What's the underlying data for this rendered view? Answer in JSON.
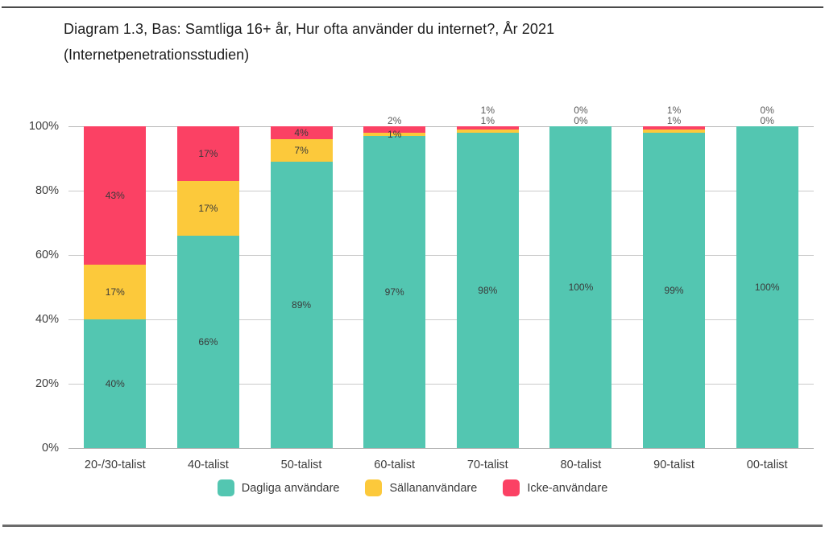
{
  "chart_data": {
    "type": "bar",
    "stacked": true,
    "title": "Diagram 1.3, Bas: Samtliga 16+ år, Hur ofta använder du internet?, År 2021",
    "subtitle": "(Internetpenetrationsstudien)",
    "categories": [
      "20-/30-talist",
      "40-talist",
      "50-talist",
      "60-talist",
      "70-talist",
      "80-talist",
      "90-talist",
      "00-talist"
    ],
    "series": [
      {
        "name": "Dagliga användare",
        "color": "#53C6B1",
        "values": [
          40,
          66,
          89,
          97,
          98,
          100,
          99,
          100
        ]
      },
      {
        "name": "Sällananvändare",
        "color": "#FCC93B",
        "values": [
          17,
          17,
          7,
          1,
          1,
          0,
          1,
          0
        ]
      },
      {
        "name": "Icke-användare",
        "color": "#FB4164",
        "values": [
          43,
          17,
          4,
          2,
          1,
          0,
          1,
          0
        ]
      }
    ],
    "value_label_suffix": "%",
    "yticks": [
      "0%",
      "20%",
      "40%",
      "60%",
      "80%",
      "100%"
    ],
    "ylim": [
      0,
      100
    ],
    "grid": true,
    "legend_position": "bottom",
    "grid_color": "#cbcbcb",
    "text_color": "#3a3a3a"
  }
}
